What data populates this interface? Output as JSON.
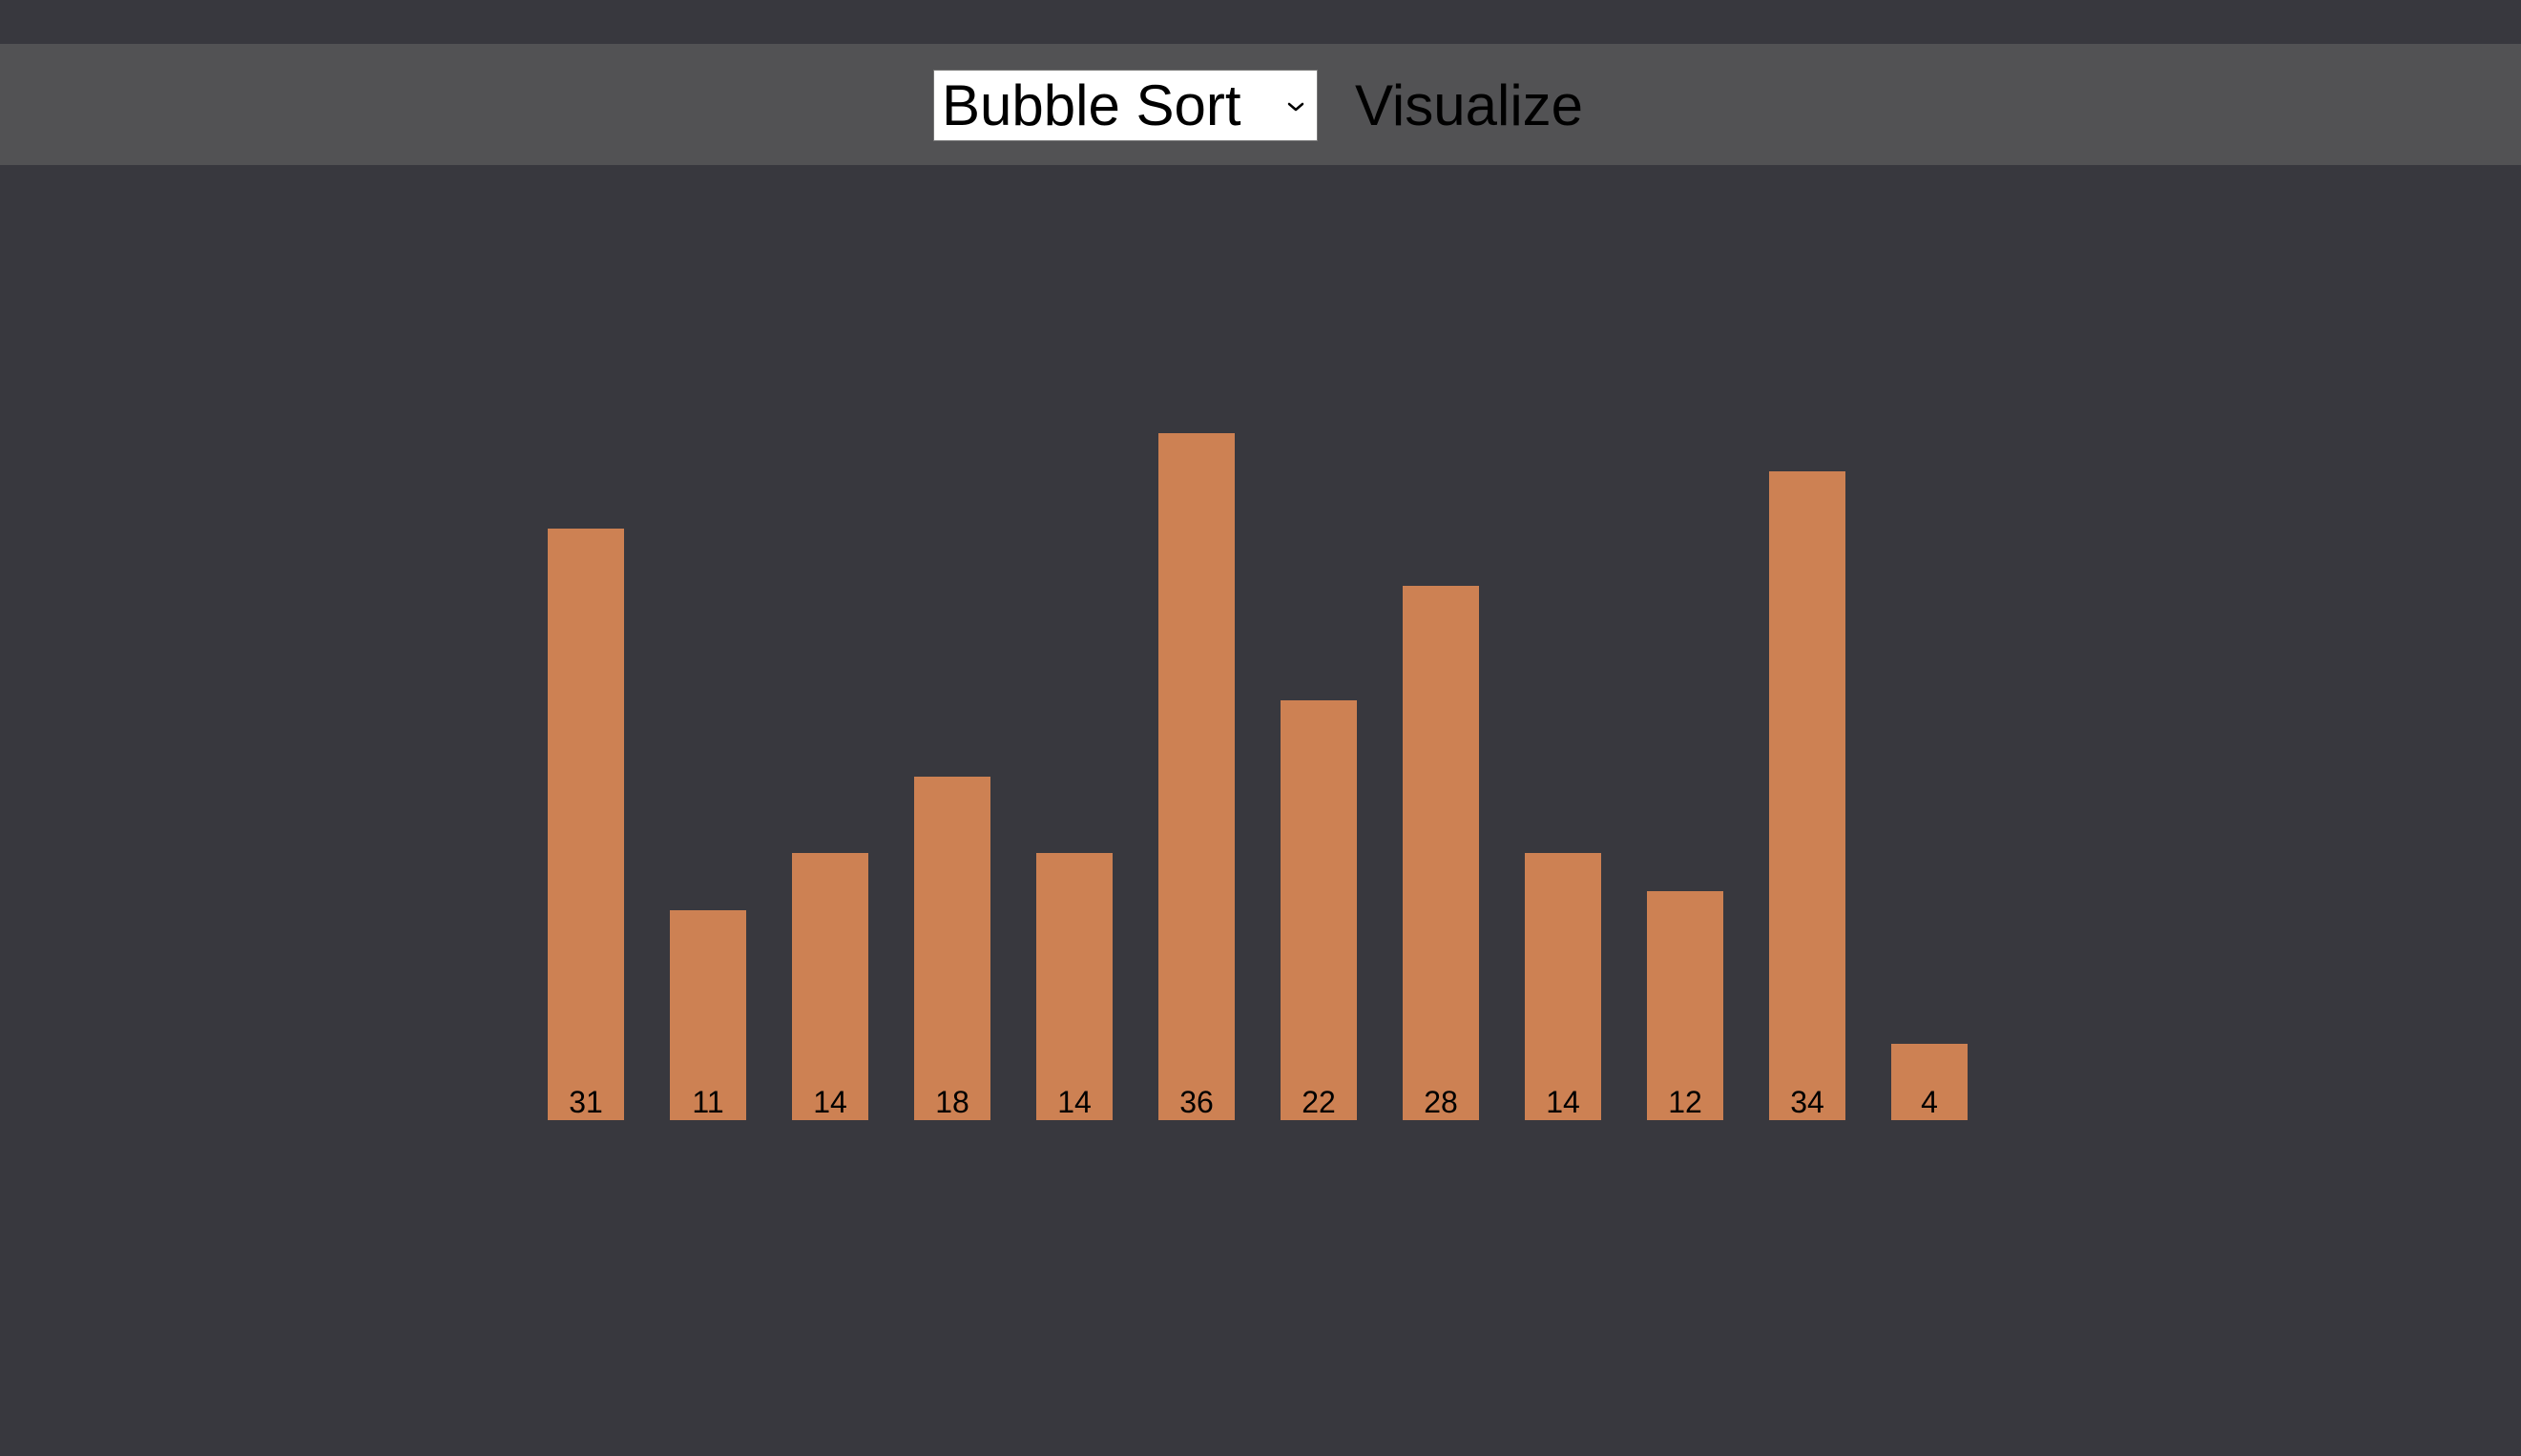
{
  "toolbar": {
    "algorithm_select": {
      "selected": "Bubble Sort"
    },
    "visualize_label": "Visualize"
  },
  "colors": {
    "background": "#38383e",
    "toolbar": "#525254",
    "bar": "#cd8153"
  },
  "icons": {
    "select_arrow": "chevron-down-icon"
  },
  "chart_data": {
    "type": "bar",
    "values": [
      31,
      11,
      14,
      18,
      14,
      36,
      22,
      28,
      14,
      12,
      34,
      4
    ],
    "data_labels": true
  }
}
